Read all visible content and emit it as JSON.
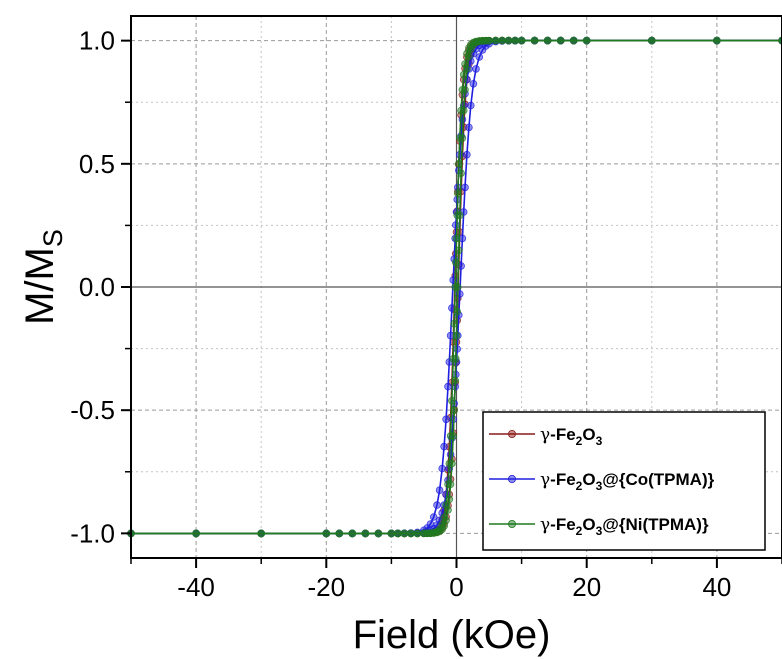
{
  "chart_data": {
    "type": "line",
    "xlabel": "Field (kOe)",
    "ylabel": {
      "main": "M/M",
      "sub": "S"
    },
    "xlim": [
      -50,
      50
    ],
    "ylim": [
      -1.1,
      1.1
    ],
    "x_ticks": [
      -40,
      -20,
      0,
      20,
      40
    ],
    "x_tick_labels": [
      "-40",
      "-20",
      "0",
      "20",
      "40"
    ],
    "y_ticks": [
      -1.0,
      -0.5,
      0.0,
      0.5,
      1.0
    ],
    "y_tick_labels": [
      "-1.0",
      "-0.5",
      "0.0",
      "0.5",
      "1.0"
    ],
    "grid": true,
    "legend_position": "bottom-right",
    "series": [
      {
        "key": "fe2o3",
        "name": "γ-Fe2O3",
        "legend_label": {
          "greek": "γ",
          "parts": [
            [
              "-Fe",
              ""
            ],
            [
              "2",
              "sub"
            ],
            [
              "O",
              ""
            ],
            [
              "3",
              "sub"
            ]
          ]
        },
        "color": "#8b1a1a",
        "hc": 0.25,
        "w": 1.1
      },
      {
        "key": "co",
        "name": "γ-Fe2O3@{Co(TPMA)}",
        "legend_label": {
          "greek": "γ",
          "parts": [
            [
              "-Fe",
              ""
            ],
            [
              "2",
              "sub"
            ],
            [
              "O",
              ""
            ],
            [
              "3",
              "sub"
            ],
            [
              "@{Co(TPMA)}",
              ""
            ]
          ]
        },
        "color": "#1f1fe0",
        "hc": 0.55,
        "w": 1.75
      },
      {
        "key": "ni",
        "name": "γ-Fe2O3@{Ni(TPMA)}",
        "legend_label": {
          "greek": "γ",
          "parts": [
            [
              "-Fe",
              ""
            ],
            [
              "2",
              "sub"
            ],
            [
              "O",
              ""
            ],
            [
              "3",
              "sub"
            ],
            [
              "@{Ni(TPMA)}",
              ""
            ]
          ]
        },
        "color": "#1f7a1f",
        "hc": 0.2,
        "w": 1.0
      }
    ],
    "x_points": [
      -50,
      -40,
      -30,
      -20,
      -18,
      -16,
      -14,
      -12,
      -10,
      -9,
      -8,
      -7,
      -6,
      -5,
      -4.5,
      -4,
      -3.5,
      -3,
      -2.6,
      -2.2,
      -1.9,
      -1.6,
      -1.3,
      -1.1,
      -0.9,
      -0.7,
      -0.5,
      -0.35,
      -0.2,
      -0.1,
      0,
      0.1,
      0.2,
      0.35,
      0.5,
      0.7,
      0.9,
      1.1,
      1.3,
      1.6,
      1.9,
      2.2,
      2.6,
      3,
      3.5,
      4,
      4.5,
      5,
      6,
      7,
      8,
      9,
      10,
      12,
      14,
      16,
      18,
      20,
      30,
      40,
      50
    ]
  }
}
